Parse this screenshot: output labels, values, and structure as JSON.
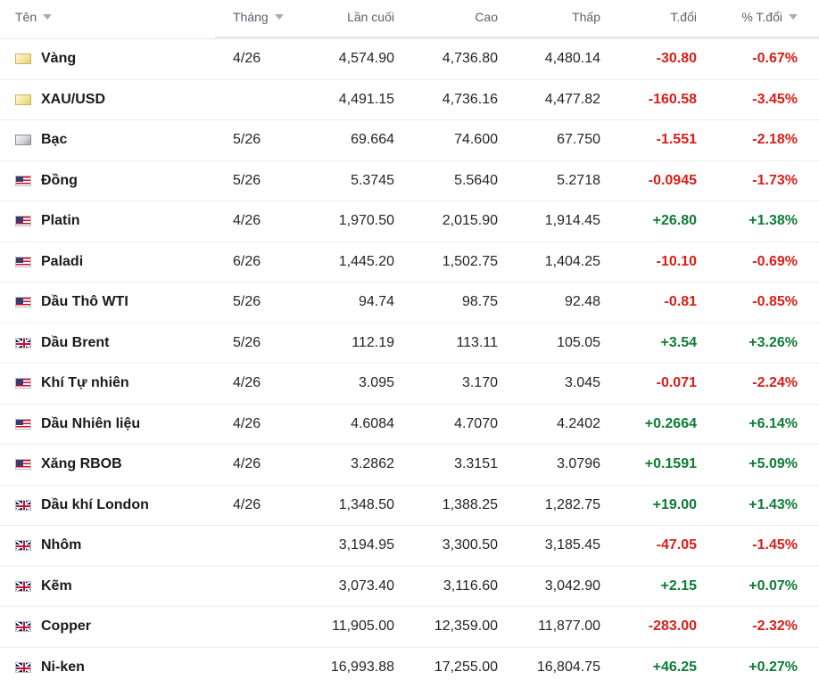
{
  "header": {
    "name": "Tên",
    "month": "Tháng",
    "last": "Lần cuối",
    "high": "Cao",
    "low": "Thấp",
    "change": "T.đổi",
    "pct_change": "% T.đổi"
  },
  "colors": {
    "negative": "#d91e18",
    "positive": "#0e7c36",
    "header_text": "#5b616e"
  },
  "rows": [
    {
      "icon": "gold-icon",
      "name": "Vàng",
      "month": "4/26",
      "last": "4,574.90",
      "high": "4,736.80",
      "low": "4,480.14",
      "change": "-30.80",
      "pct": "-0.67%",
      "dir": "neg"
    },
    {
      "icon": "gold-icon",
      "name": "XAU/USD",
      "month": "",
      "last": "4,491.15",
      "high": "4,736.16",
      "low": "4,477.82",
      "change": "-160.58",
      "pct": "-3.45%",
      "dir": "neg"
    },
    {
      "icon": "silver-icon",
      "name": "Bạc",
      "month": "5/26",
      "last": "69.664",
      "high": "74.600",
      "low": "67.750",
      "change": "-1.551",
      "pct": "-2.18%",
      "dir": "neg"
    },
    {
      "icon": "us-flag-icon",
      "name": "Đồng",
      "month": "5/26",
      "last": "5.3745",
      "high": "5.5640",
      "low": "5.2718",
      "change": "-0.0945",
      "pct": "-1.73%",
      "dir": "neg"
    },
    {
      "icon": "us-flag-icon",
      "name": "Platin",
      "month": "4/26",
      "last": "1,970.50",
      "high": "2,015.90",
      "low": "1,914.45",
      "change": "+26.80",
      "pct": "+1.38%",
      "dir": "pos"
    },
    {
      "icon": "us-flag-icon",
      "name": "Paladi",
      "month": "6/26",
      "last": "1,445.20",
      "high": "1,502.75",
      "low": "1,404.25",
      "change": "-10.10",
      "pct": "-0.69%",
      "dir": "neg"
    },
    {
      "icon": "us-flag-icon",
      "name": "Dầu Thô WTI",
      "month": "5/26",
      "last": "94.74",
      "high": "98.75",
      "low": "92.48",
      "change": "-0.81",
      "pct": "-0.85%",
      "dir": "neg"
    },
    {
      "icon": "uk-flag-icon",
      "name": "Dầu Brent",
      "month": "5/26",
      "last": "112.19",
      "high": "113.11",
      "low": "105.05",
      "change": "+3.54",
      "pct": "+3.26%",
      "dir": "pos"
    },
    {
      "icon": "us-flag-icon",
      "name": "Khí Tự nhiên",
      "month": "4/26",
      "last": "3.095",
      "high": "3.170",
      "low": "3.045",
      "change": "-0.071",
      "pct": "-2.24%",
      "dir": "neg"
    },
    {
      "icon": "us-flag-icon",
      "name": "Dầu Nhiên liệu",
      "month": "4/26",
      "last": "4.6084",
      "high": "4.7070",
      "low": "4.2402",
      "change": "+0.2664",
      "pct": "+6.14%",
      "dir": "pos"
    },
    {
      "icon": "us-flag-icon",
      "name": "Xăng RBOB",
      "month": "4/26",
      "last": "3.2862",
      "high": "3.3151",
      "low": "3.0796",
      "change": "+0.1591",
      "pct": "+5.09%",
      "dir": "pos"
    },
    {
      "icon": "uk-flag-icon",
      "name": "Dầu khí London",
      "month": "4/26",
      "last": "1,348.50",
      "high": "1,388.25",
      "low": "1,282.75",
      "change": "+19.00",
      "pct": "+1.43%",
      "dir": "pos"
    },
    {
      "icon": "uk-flag-icon",
      "name": "Nhôm",
      "month": "",
      "last": "3,194.95",
      "high": "3,300.50",
      "low": "3,185.45",
      "change": "-47.05",
      "pct": "-1.45%",
      "dir": "neg"
    },
    {
      "icon": "uk-flag-icon",
      "name": "Kẽm",
      "month": "",
      "last": "3,073.40",
      "high": "3,116.60",
      "low": "3,042.90",
      "change": "+2.15",
      "pct": "+0.07%",
      "dir": "pos"
    },
    {
      "icon": "uk-flag-icon",
      "name": "Copper",
      "month": "",
      "last": "11,905.00",
      "high": "12,359.00",
      "low": "11,877.00",
      "change": "-283.00",
      "pct": "-2.32%",
      "dir": "neg"
    },
    {
      "icon": "uk-flag-icon",
      "name": "Ni-ken",
      "month": "",
      "last": "16,993.88",
      "high": "17,255.00",
      "low": "16,804.75",
      "change": "+46.25",
      "pct": "+0.27%",
      "dir": "pos"
    }
  ]
}
